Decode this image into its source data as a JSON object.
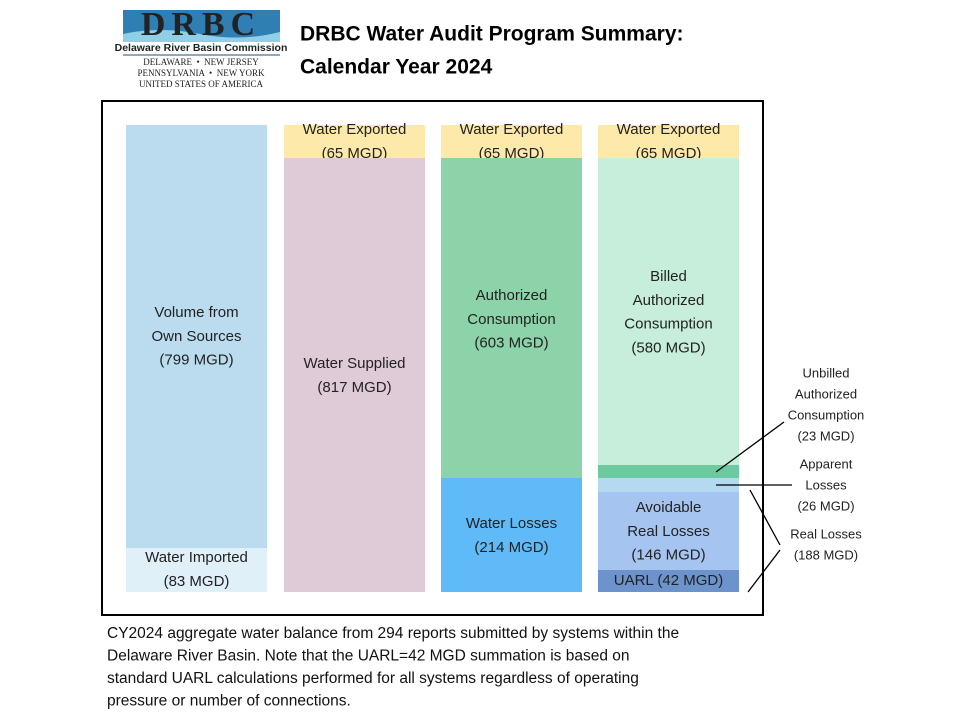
{
  "logo": {
    "mark": "DRBC",
    "name": "Delaware River Basin Commission",
    "states": [
      "DELAWARE  •  NEW JERSEY",
      "PENNSYLVANIA  •  NEW YORK",
      "UNITED STATES OF AMERICA"
    ]
  },
  "header": {
    "title": [
      "DRBC Water Audit Program Summary:",
      "Calendar Year 2024"
    ]
  },
  "columns": [
    {
      "blocks": [
        {
          "lines": [
            "Volume from",
            "Own Sources",
            "(799 MGD)"
          ]
        },
        {
          "lines": [
            "Water Imported",
            "(83 MGD)"
          ]
        }
      ]
    },
    {
      "blocks": [
        {
          "lines": [
            "Water Exported",
            "(65 MGD)"
          ]
        },
        {
          "lines": [
            "Water Supplied",
            "(817 MGD)"
          ]
        }
      ]
    },
    {
      "blocks": [
        {
          "lines": [
            "Water Exported",
            "(65 MGD)"
          ]
        },
        {
          "lines": [
            "Authorized",
            "Consumption",
            "(603 MGD)"
          ]
        },
        {
          "lines": [
            "Water Losses",
            "(214 MGD)"
          ]
        }
      ]
    },
    {
      "blocks": [
        {
          "lines": [
            "Water Exported",
            "(65 MGD)"
          ]
        },
        {
          "lines": [
            "Billed",
            "Authorized",
            "Consumption",
            "(580 MGD)"
          ]
        },
        {
          "lines": [
            "Avoidable",
            "Real Losses",
            "(146 MGD)"
          ]
        },
        {
          "lines": [
            "UARL (42 MGD)"
          ]
        }
      ]
    }
  ],
  "side_labels": [
    {
      "lines": [
        "Unbilled",
        "Authorized",
        "Consumption",
        "(23 MGD)"
      ]
    },
    {
      "lines": [
        "Apparent",
        "Losses",
        "(26 MGD)"
      ]
    },
    {
      "lines": [
        "Real Losses",
        "(188 MGD)"
      ]
    }
  ],
  "caption": [
    "CY2024 aggregate water balance from 294 reports submitted by systems within the",
    "Delaware River Basin. Note that the UARL=42 MGD summation is based on",
    "standard UARL calculations performed for all systems regardless of operating",
    "pressure or number of connections."
  ]
}
